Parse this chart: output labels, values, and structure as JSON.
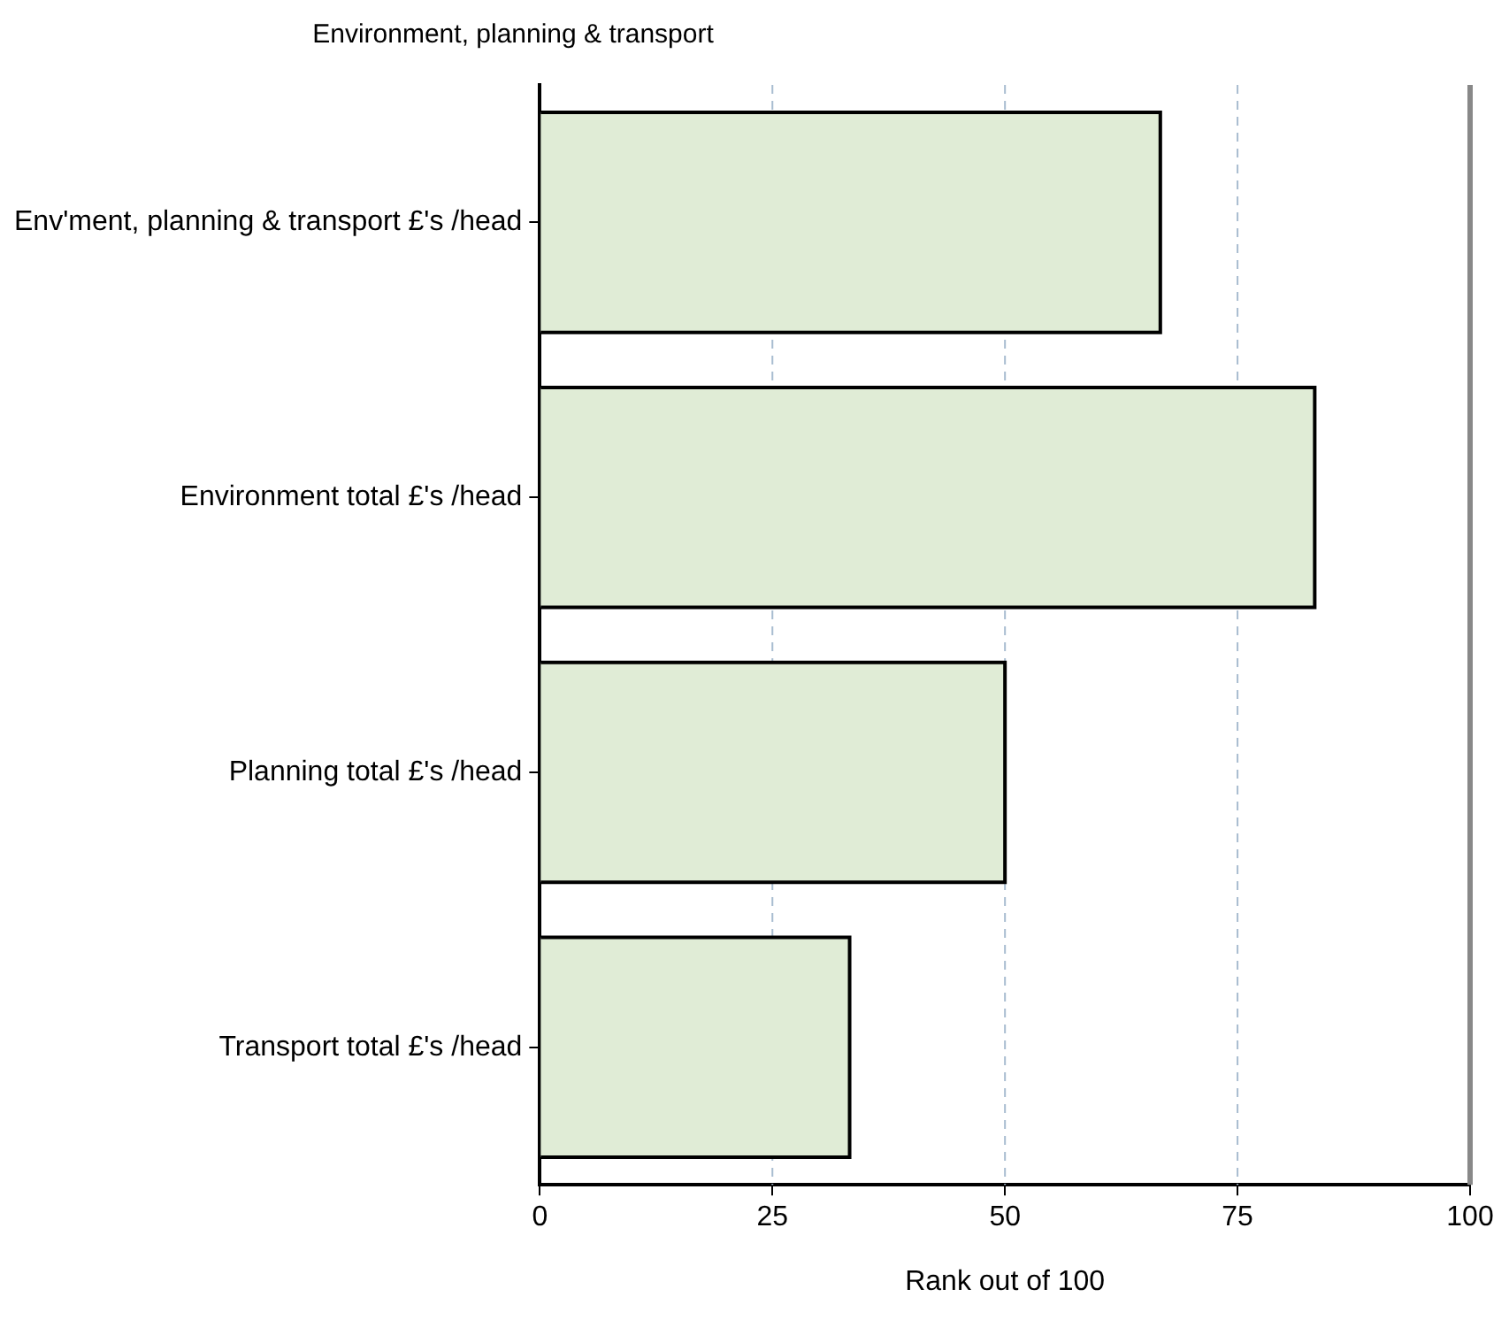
{
  "chart_data": {
    "type": "bar",
    "orientation": "horizontal",
    "title": "Environment, planning & transport",
    "xlabel": "Rank out of 100",
    "categories": [
      "Env'ment, planning & transport £'s /head",
      "Environment total £'s /head",
      "Planning total £'s /head",
      "Transport total £'s /head"
    ],
    "values": [
      66.7,
      83.3,
      50,
      33.3
    ],
    "color": "#e0ecd6",
    "xlim": [
      0,
      100
    ],
    "xticks": [
      0,
      25,
      50,
      75,
      100
    ],
    "grid": "x"
  }
}
